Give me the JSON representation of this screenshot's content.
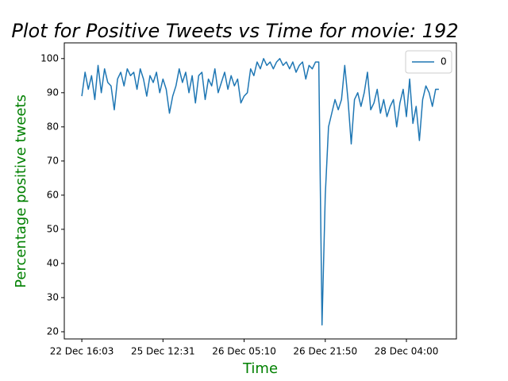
{
  "chart_data": {
    "type": "line",
    "title": "Plot for Positive Tweets vs Time for movie: 192",
    "xlabel": "Time",
    "ylabel": "Percentage positive tweets",
    "label_color": "green",
    "series": [
      {
        "name": "0",
        "color": "#1f77b4",
        "values": [
          89,
          96,
          91,
          95,
          88,
          98,
          90,
          97,
          93,
          92,
          85,
          94,
          96,
          92,
          97,
          95,
          96,
          91,
          97,
          94,
          89,
          95,
          93,
          96,
          90,
          94,
          91,
          84,
          89,
          92,
          97,
          93,
          96,
          90,
          95,
          87,
          95,
          96,
          88,
          94,
          92,
          97,
          90,
          93,
          96,
          91,
          95,
          92,
          94,
          87,
          89,
          90,
          97,
          95,
          99,
          97,
          100,
          98,
          99,
          97,
          99,
          100,
          98,
          99,
          97,
          99,
          96,
          98,
          99,
          94,
          98,
          97,
          99,
          99,
          22,
          60,
          80,
          84,
          88,
          85,
          88,
          98,
          88,
          75,
          88,
          90,
          86,
          90,
          96,
          85,
          87,
          91,
          84,
          88,
          83,
          86,
          88,
          80,
          87,
          91,
          83,
          94,
          81,
          86,
          76,
          88,
          92,
          90,
          86,
          91,
          91
        ]
      }
    ],
    "xlim": [
      -5.4,
      115.4
    ],
    "xticks": [
      {
        "value": 0,
        "label": "22 Dec 16:03"
      },
      {
        "value": 25,
        "label": "25 Dec 12:31"
      },
      {
        "value": 50,
        "label": "26 Dec 05:10"
      },
      {
        "value": 75,
        "label": "26 Dec 21:50"
      },
      {
        "value": 100,
        "label": "28 Dec 04:00"
      }
    ],
    "ylim": [
      17.9,
      104.6
    ],
    "yticks": [
      20,
      30,
      40,
      50,
      60,
      70,
      80,
      90,
      100
    ],
    "legend": "upper right"
  }
}
